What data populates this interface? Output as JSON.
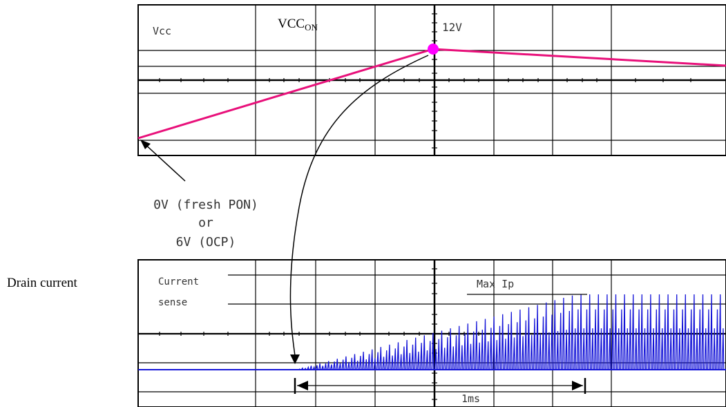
{
  "side_label": "Drain current",
  "top_panel": {
    "trace_label": "Vcc",
    "event_label": {
      "main": "VCC",
      "sub": "ON"
    },
    "peak_label": "12V"
  },
  "annotation": {
    "line1": "0V (fresh PON)",
    "line2": "or",
    "line3": "6V (OCP)"
  },
  "bottom_panel": {
    "trace_label_1": "Current",
    "trace_label_2": "sense",
    "max_label": "Max Ip",
    "duration_label": "1ms"
  },
  "colors": {
    "vcc_trace": "#e8107a",
    "current_trace": "#1414d8",
    "peak_marker": "#ff00ff",
    "grid": "#000000"
  }
}
